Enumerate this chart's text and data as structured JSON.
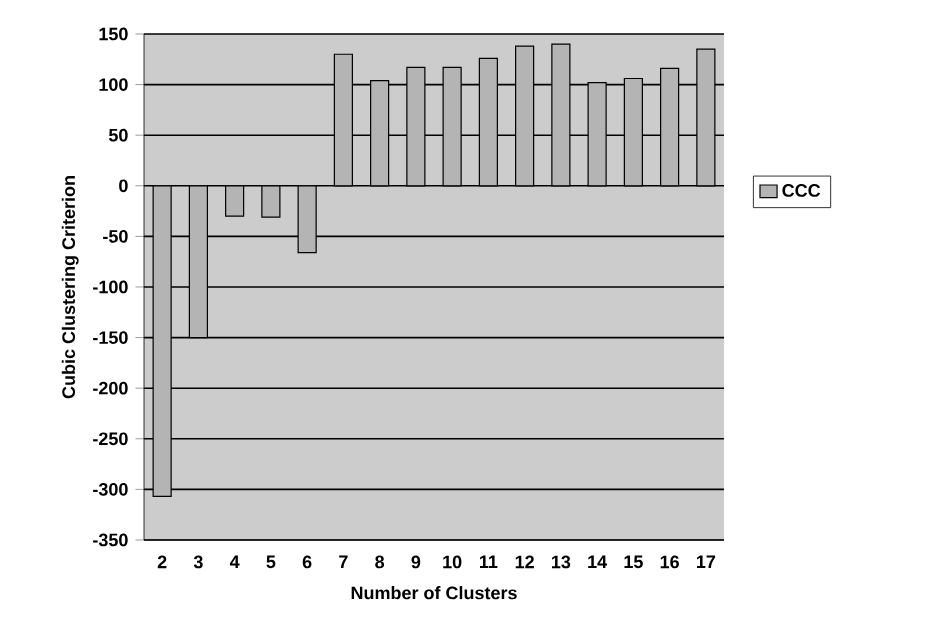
{
  "chart_data": {
    "type": "bar",
    "xlabel": "Number of Clusters",
    "ylabel": "Cubic Clustering Criterion",
    "categories": [
      "2",
      "3",
      "4",
      "5",
      "6",
      "7",
      "8",
      "9",
      "10",
      "11",
      "12",
      "13",
      "14",
      "15",
      "16",
      "17"
    ],
    "series": [
      {
        "name": "CCC",
        "color": "#b4b4b4",
        "values": [
          -307,
          -150,
          -30,
          -31,
          -66,
          130,
          104,
          117,
          117,
          126,
          138,
          140,
          102,
          106,
          116,
          135
        ]
      }
    ],
    "ylim": [
      -350,
      150
    ],
    "yticks": [
      -350,
      -300,
      -250,
      -200,
      -150,
      -100,
      -50,
      0,
      50,
      100,
      150
    ],
    "grid": "y",
    "legend": "right"
  }
}
